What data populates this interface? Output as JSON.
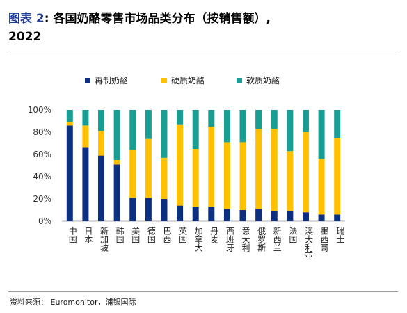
{
  "header": {
    "label": "图表 2",
    "title": ":  各国奶酪零售市场品类分布（按销售额）,",
    "year": "2022"
  },
  "source": "资料来源：  Euromonitor，浦银国际",
  "colors": {
    "processed": "#0d2f7f",
    "hard": "#ffc000",
    "soft": "#1a9e94"
  },
  "chart_data": {
    "type": "bar",
    "stacked": true,
    "categories": [
      "中国",
      "日本",
      "新加坡",
      "韩国",
      "美国",
      "德国",
      "巴西",
      "英国",
      "加拿大",
      "丹麦",
      "西班牙",
      "意大利",
      "俄罗斯",
      "新西兰",
      "法国",
      "澳大利亚",
      "墨西哥",
      "瑞士"
    ],
    "series": [
      {
        "name": "再制奶酪",
        "values": [
          86,
          66,
          59,
          51,
          21,
          21,
          20,
          14,
          13,
          13,
          11,
          10,
          11,
          9,
          9,
          8,
          6,
          6
        ]
      },
      {
        "name": "硬质奶酪",
        "values": [
          3,
          20,
          22,
          4,
          43,
          53,
          37,
          73,
          52,
          72,
          60,
          61,
          72,
          74,
          54,
          72,
          50,
          69
        ]
      },
      {
        "name": "软质奶酪",
        "values": [
          11,
          14,
          19,
          45,
          36,
          26,
          43,
          13,
          35,
          15,
          29,
          29,
          17,
          17,
          37,
          20,
          44,
          25
        ]
      }
    ],
    "yticks": [
      "0%",
      "20%",
      "40%",
      "60%",
      "80%",
      "100%"
    ],
    "ylim": [
      0,
      100
    ],
    "legend_position": "top",
    "grid": false
  }
}
